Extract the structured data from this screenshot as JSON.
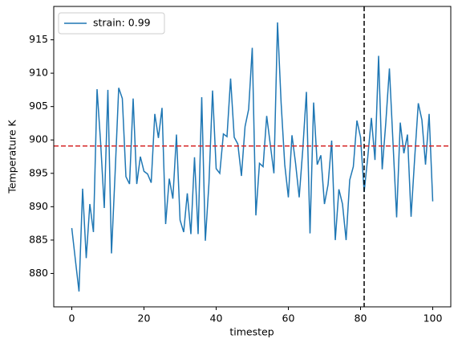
{
  "chart_data": {
    "type": "line",
    "x": [
      0,
      1,
      2,
      3,
      4,
      5,
      6,
      7,
      8,
      9,
      10,
      11,
      12,
      13,
      14,
      15,
      16,
      17,
      18,
      19,
      20,
      21,
      22,
      23,
      24,
      25,
      26,
      27,
      28,
      29,
      30,
      31,
      32,
      33,
      34,
      35,
      36,
      37,
      38,
      39,
      40,
      41,
      42,
      43,
      44,
      45,
      46,
      47,
      48,
      49,
      50,
      51,
      52,
      53,
      54,
      55,
      56,
      57,
      58,
      59,
      60,
      61,
      62,
      63,
      64,
      65,
      66,
      67,
      68,
      69,
      70,
      71,
      72,
      73,
      74,
      75,
      76,
      77,
      78,
      79,
      80,
      81,
      82,
      83,
      84,
      85,
      86,
      87,
      88,
      89,
      90,
      91,
      92,
      93,
      94,
      95,
      96,
      97,
      98,
      99,
      100
    ],
    "series": [
      {
        "name": "strain: 0.99",
        "color": "#1f77b4",
        "values": [
          886.8,
          882,
          877.3,
          892.7,
          882.3,
          890.4,
          886.2,
          907.6,
          899.5,
          889.8,
          907.5,
          883,
          895,
          907.8,
          906.2,
          894.5,
          893.4,
          906.2,
          893.4,
          897.5,
          895.3,
          894.9,
          893.6,
          903.9,
          900.3,
          904.8,
          887.4,
          894.2,
          891.2,
          900.8,
          888,
          886.2,
          892,
          885.9,
          897.4,
          885.9,
          906.4,
          884.9,
          893.5,
          907.4,
          895.7,
          895,
          900.9,
          900.5,
          909.2,
          900.4,
          899.4,
          894.6,
          902,
          904.6,
          913.8,
          888.7,
          896.5,
          896,
          903.6,
          899.3,
          895,
          917.6,
          905.5,
          896.3,
          891.4,
          900.7,
          896.5,
          891.4,
          898.6,
          907.2,
          886,
          905.6,
          896.3,
          897.7,
          890.4,
          893.3,
          899.9,
          885,
          892.6,
          890.4,
          885,
          894,
          896,
          902.9,
          900.4,
          892.2,
          897.4,
          903.3,
          897,
          912.6,
          895.6,
          902.6,
          910.7,
          899.5,
          888.4,
          902.6,
          898,
          900.8,
          888.5,
          897.3,
          905.5,
          903,
          896.3,
          903.9,
          890.8
        ]
      }
    ],
    "xlabel": "timestep",
    "ylabel": "Temperature K",
    "xlim": [
      -5,
      105
    ],
    "ylim": [
      875,
      920
    ],
    "xticks": [
      0,
      20,
      40,
      60,
      80,
      100
    ],
    "yticks": [
      880,
      885,
      890,
      895,
      900,
      905,
      910,
      915
    ],
    "hline": 899.1,
    "hline_color": "#d62728",
    "vline": 81,
    "vline_color": "#000000",
    "legend": "upper left"
  }
}
